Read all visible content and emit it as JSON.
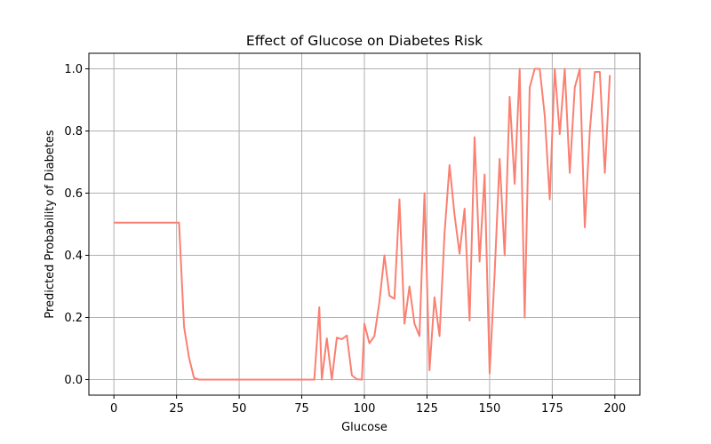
{
  "chart_data": {
    "type": "line",
    "title": "Effect of Glucose on Diabetes Risk",
    "xlabel": "Glucose",
    "ylabel": "Predicted Probability of Diabetes",
    "xlim": [
      -10,
      210
    ],
    "ylim": [
      -0.05,
      1.05
    ],
    "x_ticks": [
      0,
      25,
      50,
      75,
      100,
      125,
      150,
      175,
      200
    ],
    "x_tick_labels": [
      "0",
      "25",
      "50",
      "75",
      "100",
      "125",
      "150",
      "175",
      "200"
    ],
    "y_ticks": [
      0.0,
      0.2,
      0.4,
      0.6,
      0.8,
      1.0
    ],
    "y_tick_labels": [
      "0.0",
      "0.2",
      "0.4",
      "0.6",
      "0.8",
      "1.0"
    ],
    "grid": true,
    "line_color": "#fa8072",
    "series": [
      {
        "points": [
          [
            0,
            0.505
          ],
          [
            26,
            0.505
          ],
          [
            28,
            0.17
          ],
          [
            30,
            0.07
          ],
          [
            32,
            0.005
          ],
          [
            34,
            0.0
          ],
          [
            79,
            0.0
          ],
          [
            80,
            0.0
          ],
          [
            82,
            0.233
          ],
          [
            83,
            0.0
          ],
          [
            85,
            0.133
          ],
          [
            87,
            0.0
          ],
          [
            89,
            0.135
          ],
          [
            91,
            0.13
          ],
          [
            93,
            0.142
          ],
          [
            95,
            0.014
          ],
          [
            97,
            0.001
          ],
          [
            99,
            0.0
          ],
          [
            100,
            0.18
          ],
          [
            102,
            0.117
          ],
          [
            104,
            0.14
          ],
          [
            106,
            0.25
          ],
          [
            108,
            0.4
          ],
          [
            110,
            0.27
          ],
          [
            112,
            0.26
          ],
          [
            114,
            0.58
          ],
          [
            116,
            0.18
          ],
          [
            118,
            0.3
          ],
          [
            120,
            0.18
          ],
          [
            122,
            0.14
          ],
          [
            124,
            0.6
          ],
          [
            126,
            0.03
          ],
          [
            128,
            0.265
          ],
          [
            130,
            0.14
          ],
          [
            132,
            0.47
          ],
          [
            134,
            0.69
          ],
          [
            136,
            0.53
          ],
          [
            138,
            0.405
          ],
          [
            140,
            0.55
          ],
          [
            142,
            0.19
          ],
          [
            144,
            0.78
          ],
          [
            146,
            0.38
          ],
          [
            148,
            0.66
          ],
          [
            150,
            0.02
          ],
          [
            152,
            0.34
          ],
          [
            154,
            0.71
          ],
          [
            156,
            0.4
          ],
          [
            158,
            0.91
          ],
          [
            160,
            0.63
          ],
          [
            162,
            1.0
          ],
          [
            164,
            0.2
          ],
          [
            166,
            0.94
          ],
          [
            168,
            1.0
          ],
          [
            170,
            1.0
          ],
          [
            172,
            0.85
          ],
          [
            174,
            0.58
          ],
          [
            176,
            1.0
          ],
          [
            178,
            0.79
          ],
          [
            180,
            1.0
          ],
          [
            182,
            0.665
          ],
          [
            184,
            0.94
          ],
          [
            186,
            1.0
          ],
          [
            188,
            0.49
          ],
          [
            190,
            0.8
          ],
          [
            192,
            0.99
          ],
          [
            194,
            0.99
          ],
          [
            196,
            0.665
          ],
          [
            198,
            0.98
          ]
        ]
      }
    ]
  }
}
